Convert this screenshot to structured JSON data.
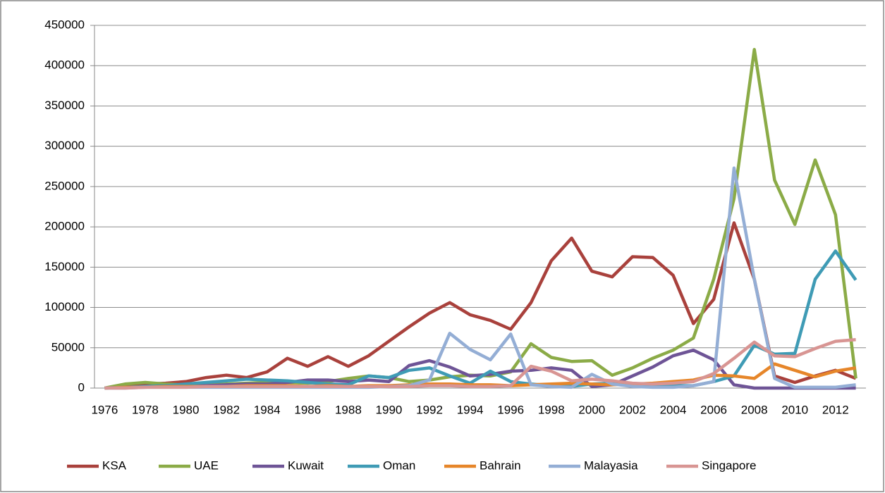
{
  "chart_data": {
    "type": "line",
    "categories": [
      1976,
      null,
      1978,
      null,
      1980,
      null,
      1982,
      null,
      1984,
      null,
      1986,
      null,
      1988,
      null,
      1990,
      null,
      1992,
      null,
      1994,
      null,
      1996,
      null,
      1998,
      null,
      2000,
      null,
      2002,
      null,
      2004,
      null,
      2006,
      null,
      2008,
      null,
      2010,
      null,
      2012,
      null
    ],
    "series": [
      {
        "name": "KSA",
        "color": "#a9413c",
        "values": [
          0,
          3000,
          5000,
          6000,
          8000,
          13000,
          16000,
          13000,
          20000,
          37000,
          27000,
          39000,
          27000,
          40000,
          58000,
          76000,
          93000,
          106000,
          91000,
          84000,
          73000,
          106000,
          158000,
          186000,
          145000,
          138000,
          163000,
          162000,
          140000,
          80000,
          110000,
          205000,
          135000,
          15000,
          7000,
          15000,
          22000,
          12000
        ]
      },
      {
        "name": "UAE",
        "color": "#8bab47",
        "values": [
          0,
          5000,
          7000,
          5000,
          4000,
          4000,
          5000,
          6000,
          7000,
          7000,
          6000,
          8000,
          12000,
          15000,
          13000,
          8000,
          10000,
          14000,
          16000,
          15000,
          20000,
          55000,
          38000,
          33000,
          34000,
          16000,
          25000,
          37000,
          47000,
          62000,
          135000,
          235000,
          420000,
          258000,
          203000,
          283000,
          215000,
          12000
        ]
      },
      {
        "name": "Kuwait",
        "color": "#6e5496",
        "values": [
          0,
          1000,
          2000,
          3000,
          3000,
          3000,
          4000,
          5000,
          5000,
          7000,
          10000,
          10000,
          8000,
          10000,
          8000,
          28000,
          34000,
          26000,
          15000,
          17000,
          21000,
          22000,
          25000,
          22000,
          2000,
          4000,
          15000,
          26000,
          40000,
          47000,
          35000,
          4000,
          0,
          0,
          0,
          0,
          0,
          0
        ]
      },
      {
        "name": "Oman",
        "color": "#3f9bb5",
        "values": [
          0,
          1000,
          2000,
          3000,
          5000,
          7000,
          9000,
          11000,
          10000,
          9000,
          7000,
          5000,
          4000,
          15000,
          13000,
          22000,
          25000,
          15000,
          6000,
          21000,
          8000,
          5000,
          3000,
          2000,
          5000,
          6000,
          3000,
          2000,
          3000,
          3000,
          8000,
          15000,
          53000,
          42000,
          43000,
          135000,
          170000,
          134000
        ]
      },
      {
        "name": "Bahrain",
        "color": "#e6862a",
        "values": [
          0,
          1000,
          1000,
          2000,
          2000,
          2000,
          2000,
          3000,
          3000,
          3000,
          2000,
          3000,
          2000,
          3000,
          3000,
          4000,
          5000,
          5000,
          4000,
          4000,
          3000,
          4000,
          5000,
          6000,
          5000,
          4000,
          5000,
          6000,
          8000,
          10000,
          16000,
          15000,
          12000,
          30000,
          22000,
          14000,
          21000,
          25000
        ]
      },
      {
        "name": "Malayasia",
        "color": "#94aed5",
        "values": [
          0,
          0,
          1000,
          1000,
          1000,
          1000,
          1000,
          1000,
          1000,
          1000,
          1000,
          1000,
          1000,
          1000,
          2000,
          3000,
          10000,
          68000,
          48000,
          35000,
          67000,
          4000,
          2000,
          1000,
          17000,
          5000,
          2000,
          1000,
          1000,
          3000,
          8000,
          273000,
          135000,
          12000,
          1000,
          1000,
          1000,
          4000
        ]
      },
      {
        "name": "Singapore",
        "color": "#d89593",
        "values": [
          0,
          0,
          1000,
          1000,
          1000,
          2000,
          2000,
          2000,
          2000,
          2000,
          2000,
          2000,
          2000,
          2000,
          2000,
          2000,
          3000,
          3000,
          2000,
          2000,
          3000,
          27000,
          21000,
          9000,
          11000,
          9000,
          6000,
          5000,
          6000,
          8000,
          18000,
          37000,
          57000,
          40000,
          39000,
          49000,
          58000,
          60000
        ]
      }
    ],
    "ylim": [
      0,
      450000
    ],
    "yticks": [
      0,
      50000,
      100000,
      150000,
      200000,
      250000,
      300000,
      350000,
      400000,
      450000
    ],
    "grid": true,
    "legend": "bottom"
  }
}
